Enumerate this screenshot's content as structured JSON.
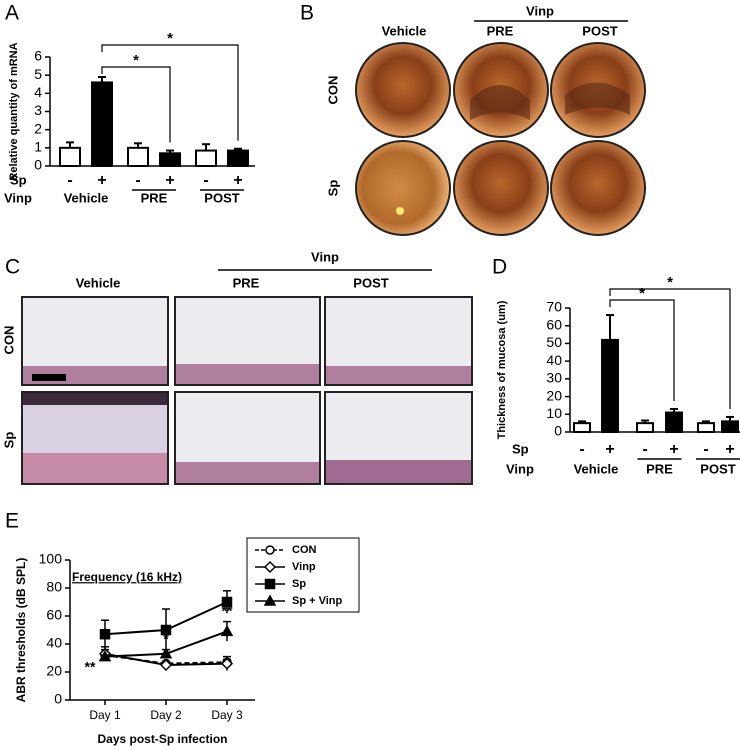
{
  "chart_data": [
    {
      "type": "bar",
      "panel": "A",
      "ylabel": "Relative quantity of mRNA",
      "categories": [
        "-",
        "+",
        "-",
        "+",
        "-",
        "+"
      ],
      "groups": [
        "Vehicle",
        "PRE",
        "POST"
      ],
      "row_labels": [
        "Sp",
        "Vinp"
      ],
      "values": [
        1.0,
        4.6,
        1.0,
        0.7,
        0.85,
        0.85
      ],
      "errors": [
        0.3,
        0.3,
        0.25,
        0.15,
        0.35,
        0.1
      ],
      "colors": [
        "#ffffff",
        "#000000",
        "#ffffff",
        "#000000",
        "#ffffff",
        "#000000"
      ],
      "ylim": [
        0,
        6
      ],
      "yticks": [
        0,
        1,
        2,
        3,
        4,
        5,
        6
      ],
      "annotations": [
        "*",
        "*"
      ]
    },
    {
      "type": "bar",
      "panel": "D",
      "ylabel": "Thickness of mucosa (um)",
      "categories": [
        "-",
        "+",
        "-",
        "+",
        "-",
        "+"
      ],
      "groups": [
        "Vehicle",
        "PRE",
        "POST"
      ],
      "row_labels": [
        "Sp",
        "Vinp"
      ],
      "values": [
        5,
        52,
        5,
        11,
        5,
        6
      ],
      "errors": [
        1,
        14,
        1.5,
        2,
        1,
        2.5
      ],
      "colors": [
        "#ffffff",
        "#000000",
        "#ffffff",
        "#000000",
        "#ffffff",
        "#000000"
      ],
      "ylim": [
        0,
        70
      ],
      "yticks": [
        0,
        10,
        20,
        30,
        40,
        50,
        60,
        70
      ],
      "annotations": [
        "*",
        "*"
      ]
    },
    {
      "type": "line",
      "panel": "E",
      "title": "Frequency (16 kHz)",
      "ylabel": "ABR thresholds (dB SPL)",
      "xlabel": "Days post-Sp infection",
      "categories": [
        "Day 1",
        "Day 2",
        "Day 3"
      ],
      "series": [
        {
          "name": "CON",
          "color": "#000000",
          "marker": "circle",
          "filled": false,
          "dashed": true,
          "values": [
            32,
            26,
            27
          ],
          "errors": [
            4,
            1,
            2
          ]
        },
        {
          "name": "Vinp",
          "color": "#000000",
          "marker": "diamond",
          "filled": false,
          "dashed": false,
          "values": [
            33,
            25,
            26
          ],
          "errors": [
            5,
            1,
            5
          ]
        },
        {
          "name": "Sp",
          "color": "#000000",
          "marker": "square",
          "filled": true,
          "dashed": false,
          "values": [
            47,
            50,
            70
          ],
          "errors": [
            10,
            15,
            8
          ]
        },
        {
          "name": "Sp + Vinp",
          "color": "#000000",
          "marker": "triangle",
          "filled": true,
          "dashed": false,
          "values": [
            31,
            33,
            49
          ],
          "errors": [
            1,
            3,
            7
          ]
        }
      ],
      "ylim": [
        0,
        100
      ],
      "yticks": [
        0,
        20,
        40,
        60,
        80,
        100
      ],
      "annotations": [
        "**",
        "*",
        "**"
      ]
    }
  ],
  "figure_panels": [
    {
      "panel": "B",
      "columns": [
        "Vehicle",
        "PRE",
        "POST"
      ],
      "column_group": "Vinp",
      "rows": [
        "CON",
        "Sp"
      ]
    },
    {
      "panel": "C",
      "columns": [
        "Vehicle",
        "PRE",
        "POST"
      ],
      "column_group": "Vinp",
      "rows": [
        "CON",
        "Sp"
      ]
    }
  ]
}
